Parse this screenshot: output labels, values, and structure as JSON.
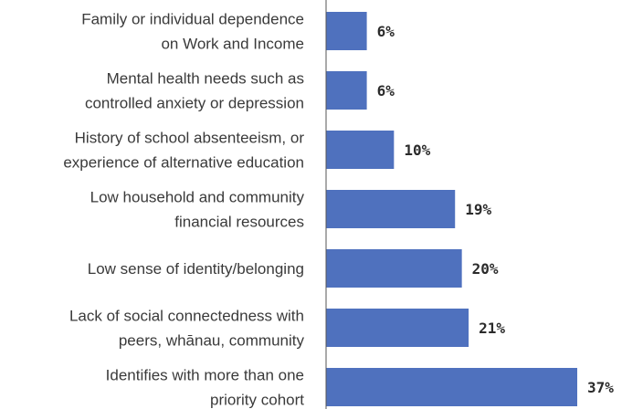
{
  "chart_data": {
    "type": "bar",
    "orientation": "horizontal",
    "title": "",
    "xlabel": "",
    "ylabel": "",
    "categories": [
      [
        "Family or individual dependence",
        "on Work and Income"
      ],
      [
        "Mental health needs such as",
        "controlled anxiety or depression"
      ],
      [
        "History of school absenteeism, or",
        "experience of alternative education"
      ],
      [
        "Low household and community",
        "financial resources"
      ],
      [
        "Low sense of identity/belonging"
      ],
      [
        "Lack of social connectedness with",
        "peers, whānau, community"
      ],
      [
        "Identifies with more than one",
        "priority cohort"
      ]
    ],
    "values": [
      6,
      6,
      10,
      19,
      20,
      21,
      37
    ],
    "value_labels": [
      "6%",
      "6%",
      "10%",
      "19%",
      "20%",
      "21%",
      "37%"
    ],
    "xlim": [
      0,
      37
    ],
    "grid": false,
    "legend": "none",
    "colors": {
      "bar": "#4f71be",
      "axis": "#555555",
      "text": "#3a3a3a"
    }
  }
}
